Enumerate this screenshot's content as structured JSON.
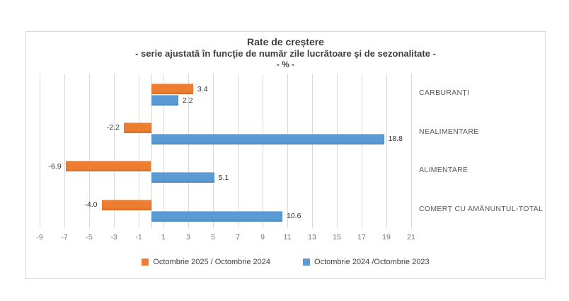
{
  "chart_data": {
    "type": "bar",
    "orientation": "horizontal",
    "title": "Rate de creștere",
    "subtitle": "- serie ajustată în funcţie de număr zile lucrătoare şi de sezonalitate -",
    "unit_label": "- % -",
    "categories": [
      "CARBURANȚI",
      "NEALIMENTARE",
      "ALIMENTARE",
      "COMERȚ CU AMĂNUNTUL-TOTAL"
    ],
    "series": [
      {
        "name": "Octombrie 2025 / Octombrie 2024",
        "color": "#ED7D31",
        "values": [
          3.4,
          -2.2,
          -6.9,
          -4.0
        ]
      },
      {
        "name": "Octombrie 2024 /Octombrie 2023",
        "color": "#5B9BD5",
        "values": [
          2.2,
          18.8,
          5.1,
          10.6
        ]
      }
    ],
    "value_label_decimals": 1,
    "x_axis": {
      "min": -9,
      "max": 21,
      "tick_step": 2,
      "ticks": [
        -9,
        -7,
        -5,
        -3,
        -1,
        1,
        3,
        5,
        7,
        9,
        11,
        13,
        15,
        17,
        19,
        21
      ]
    },
    "gridlines": true,
    "gridline_color": "#D9D9D9",
    "frame_border_color": "#D9D9D9",
    "legend_position": "bottom"
  }
}
